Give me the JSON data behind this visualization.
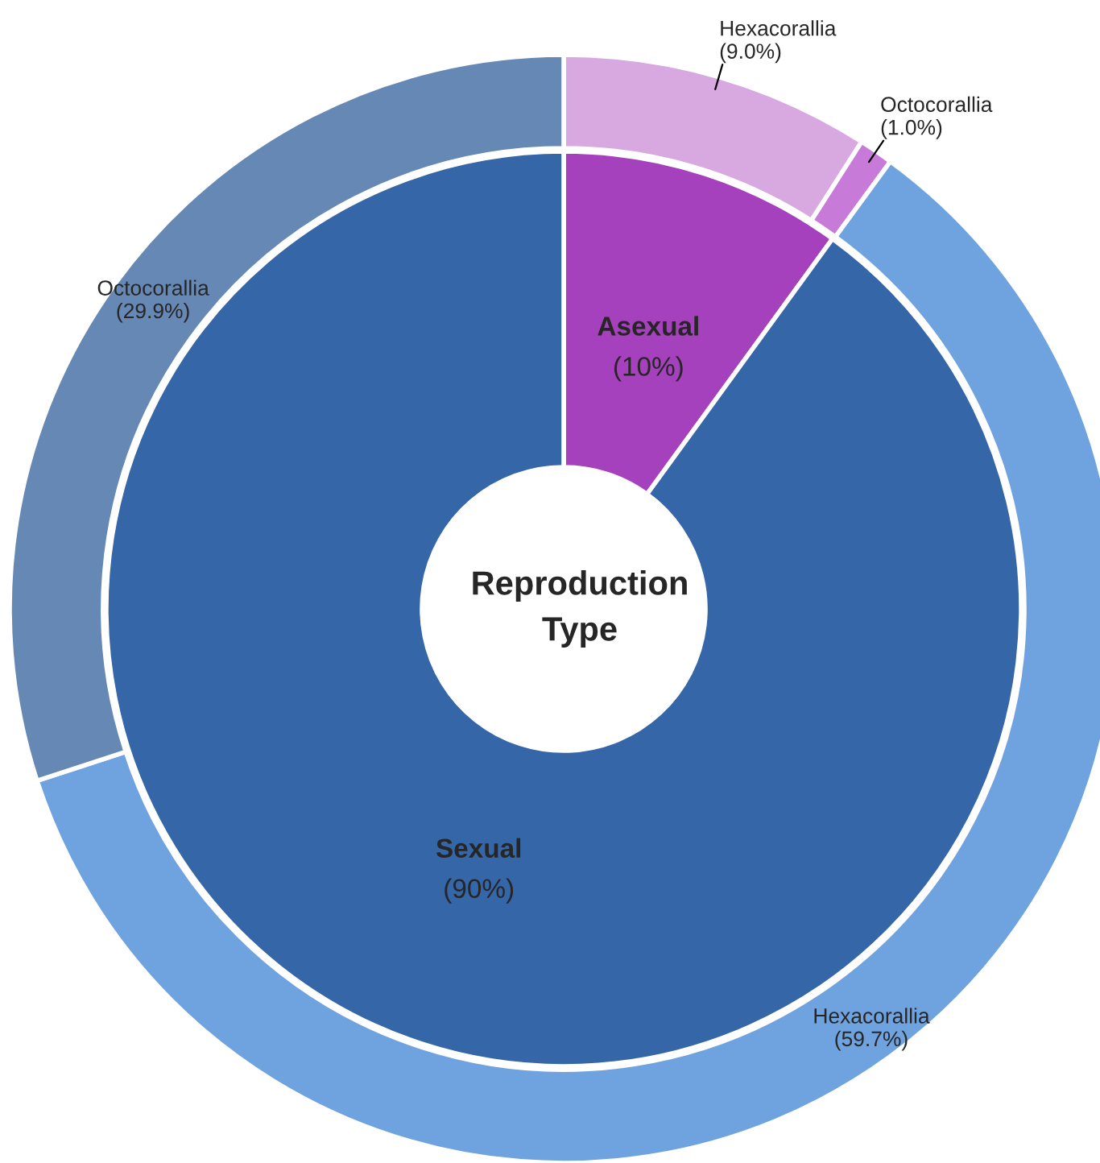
{
  "chart_data": {
    "type": "donut",
    "title": "Reproduction\nType",
    "series": [
      {
        "values": [
          10,
          90
        ],
        "colors": [
          "#a641be",
          "#3566a8"
        ],
        "value_labels": [
          "Asexual\n(10%)",
          "Sexual\n(90%)"
        ]
      },
      {
        "values": [
          9.0,
          1.0,
          59.7,
          29.9
        ],
        "colors": [
          "#d8a8e0",
          "#c87ad8",
          "#6fa3e0",
          "#6688b5"
        ],
        "value_labels": [
          "Hexacorallia\n(9.0%)",
          "Octocorallia\n(1.0%)",
          "Hexacorallia\n(59.7%)",
          "Octocorallia\n(29.9%)"
        ]
      }
    ]
  }
}
